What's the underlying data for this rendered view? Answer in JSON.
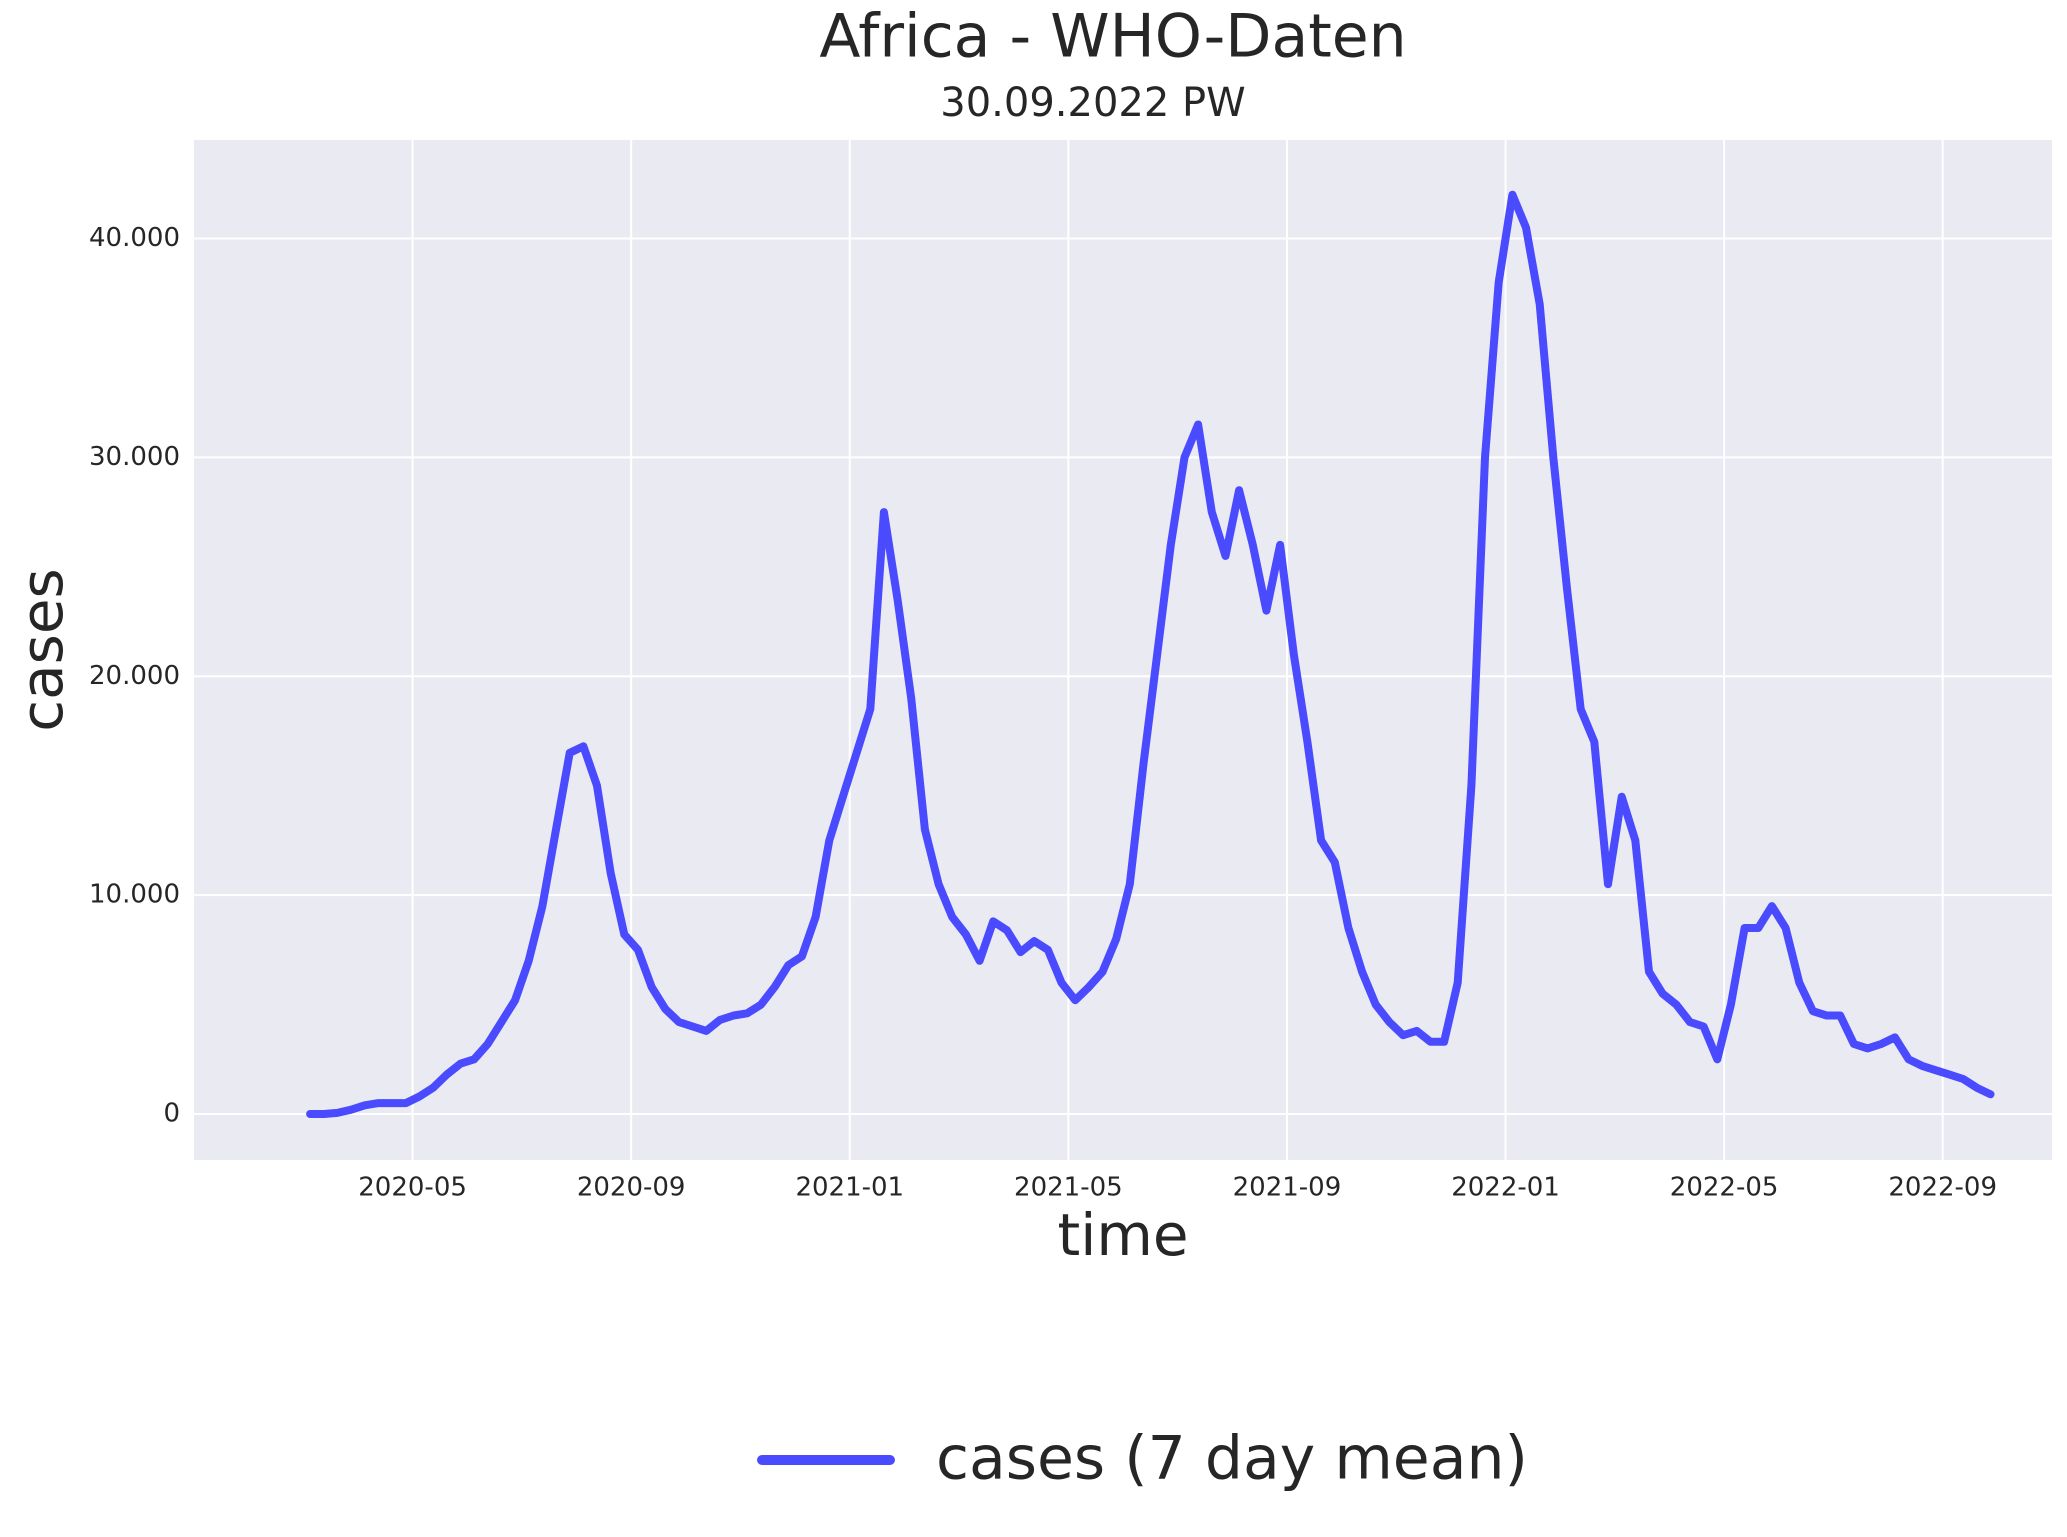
{
  "chart_data": {
    "type": "line",
    "title": "Africa - WHO-Daten",
    "subtitle": "30.09.2022 PW",
    "x_label": "time",
    "y_label": "cases",
    "y_label_color": "#0000ee",
    "x": [
      "2020-03",
      "2020-03",
      "2020-03",
      "2020-03",
      "2020-04",
      "2020-04",
      "2020-04",
      "2020-04",
      "2020-05",
      "2020-05",
      "2020-05",
      "2020-05",
      "2020-06",
      "2020-06",
      "2020-06",
      "2020-06",
      "2020-07",
      "2020-07",
      "2020-07",
      "2020-07",
      "2020-08",
      "2020-08",
      "2020-08",
      "2020-08",
      "2020-09",
      "2020-09",
      "2020-09",
      "2020-09",
      "2020-10",
      "2020-10",
      "2020-10",
      "2020-10",
      "2020-11",
      "2020-11",
      "2020-11",
      "2020-11",
      "2020-12",
      "2020-12",
      "2020-12",
      "2020-12",
      "2021-01",
      "2021-01",
      "2021-01",
      "2021-01",
      "2021-02",
      "2021-02",
      "2021-02",
      "2021-02",
      "2021-03",
      "2021-03",
      "2021-03",
      "2021-03",
      "2021-04",
      "2021-04",
      "2021-04",
      "2021-04",
      "2021-05",
      "2021-05",
      "2021-05",
      "2021-05",
      "2021-06",
      "2021-06",
      "2021-06",
      "2021-06",
      "2021-07",
      "2021-07",
      "2021-07",
      "2021-07",
      "2021-08",
      "2021-08",
      "2021-08",
      "2021-08",
      "2021-09",
      "2021-09",
      "2021-09",
      "2021-09",
      "2021-10",
      "2021-10",
      "2021-10",
      "2021-10",
      "2021-11",
      "2021-11",
      "2021-11",
      "2021-11",
      "2021-12",
      "2021-12",
      "2021-12",
      "2021-12",
      "2022-01",
      "2022-01",
      "2022-01",
      "2022-01",
      "2022-02",
      "2022-02",
      "2022-02",
      "2022-02",
      "2022-03",
      "2022-03",
      "2022-03",
      "2022-03",
      "2022-04",
      "2022-04",
      "2022-04",
      "2022-04",
      "2022-05",
      "2022-05",
      "2022-05",
      "2022-05",
      "2022-06",
      "2022-06",
      "2022-06",
      "2022-06",
      "2022-07",
      "2022-07",
      "2022-07",
      "2022-07",
      "2022-08",
      "2022-08",
      "2022-08",
      "2022-08",
      "2022-09",
      "2022-09",
      "2022-09",
      "2022-09"
    ],
    "series": [
      {
        "name": "cases (7 day mean)",
        "color": "#4a4aff",
        "values": [
          0,
          0,
          50,
          200,
          400,
          500,
          500,
          500,
          800,
          1200,
          1800,
          2300,
          2500,
          3200,
          4200,
          5200,
          7000,
          9500,
          13000,
          16500,
          16800,
          15000,
          11000,
          8200,
          7500,
          5800,
          4800,
          4200,
          4000,
          3800,
          4300,
          4500,
          4600,
          5000,
          5800,
          6800,
          7200,
          9000,
          12500,
          14500,
          16500,
          18500,
          27500,
          23500,
          19000,
          13000,
          10500,
          9000,
          8200,
          7000,
          8800,
          8400,
          7400,
          7900,
          7500,
          6000,
          5200,
          5800,
          6500,
          8000,
          10500,
          16000,
          21000,
          26000,
          30000,
          31500,
          27500,
          25500,
          28500,
          26000,
          23000,
          26000,
          21000,
          17000,
          12500,
          11500,
          8500,
          6500,
          5000,
          4200,
          3600,
          3800,
          3300,
          3300,
          6000,
          15000,
          30000,
          38000,
          42000,
          40500,
          37000,
          30000,
          24000,
          18500,
          17000,
          10500,
          14500,
          12500,
          6500,
          5500,
          5000,
          4200,
          4000,
          2500,
          5000,
          8500,
          8500,
          9500,
          8500,
          6000,
          4700,
          4500,
          4500,
          3200,
          3000,
          3200,
          3500,
          2500,
          2200,
          2000,
          1800,
          1600,
          1200,
          900
        ]
      }
    ],
    "xlim": [
      "2020-01",
      "2022-11"
    ],
    "xticks": [
      "2020-05",
      "2020-09",
      "2021-01",
      "2021-05",
      "2021-09",
      "2022-01",
      "2022-05",
      "2022-09"
    ],
    "ylim": [
      -2100,
      44500
    ],
    "yticks": [
      0,
      {
        "value": 10000,
        "label": "10.000"
      },
      {
        "value": 20000,
        "label": "20.000"
      },
      {
        "value": 30000,
        "label": "30.000"
      },
      {
        "value": 40000,
        "label": "40.000"
      }
    ],
    "grid": true,
    "legend": "bottom"
  }
}
